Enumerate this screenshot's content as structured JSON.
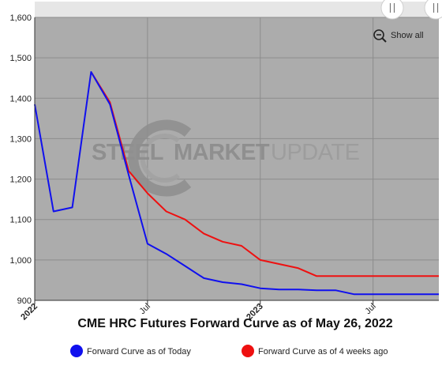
{
  "chart_data": {
    "type": "line",
    "title": "CME HRC Futures Forward Curve as of May 26, 2022",
    "x_ticks": [
      {
        "label": "2022",
        "bold": true,
        "month": 0
      },
      {
        "label": "Jul",
        "bold": false,
        "month": 6
      },
      {
        "label": "2023",
        "bold": true,
        "month": 12
      },
      {
        "label": "Jul",
        "bold": false,
        "month": 18
      }
    ],
    "xlim": [
      0,
      21.5
    ],
    "ylim": [
      900,
      1600
    ],
    "y_ticks": [
      900,
      1000,
      1100,
      1200,
      1300,
      1400,
      1500,
      1600
    ],
    "y_tick_labels": [
      "900",
      "1,000",
      "1,100",
      "1,200",
      "1,300",
      "1,400",
      "1,500",
      "1,600"
    ],
    "grid": true,
    "legend_position": "bottom",
    "series": [
      {
        "name": "Forward Curve as of Today",
        "color": "#1010ee",
        "x": [
          0,
          1,
          2,
          3,
          4,
          5,
          6,
          7,
          8,
          9,
          10,
          11,
          12,
          13,
          14,
          15,
          16,
          17,
          18,
          19,
          20,
          21.5
        ],
        "y": [
          1385,
          1120,
          1130,
          1465,
          1385,
          1210,
          1040,
          1015,
          985,
          955,
          945,
          940,
          930,
          927,
          927,
          925,
          925,
          915,
          915,
          915,
          915,
          915
        ]
      },
      {
        "name": "Forward Curve as of 4 weeks ago",
        "color": "#ee1010",
        "x": [
          3,
          4,
          5,
          6,
          7,
          8,
          9,
          10,
          11,
          12,
          13,
          14,
          15,
          16,
          17,
          18,
          19,
          20,
          21.5
        ],
        "y": [
          1465,
          1390,
          1220,
          1165,
          1120,
          1100,
          1065,
          1045,
          1035,
          1000,
          990,
          980,
          960,
          960,
          960,
          960,
          960,
          960,
          960
        ]
      }
    ]
  },
  "toolbar": {
    "show_all_label": "Show all"
  },
  "watermark": {
    "word1": "STEEL",
    "word2": "MARKET",
    "word3": "UPDATE"
  },
  "colors": {
    "plot_background": "#acacac",
    "grid": "#8c8c8c",
    "navigator_strip": "#e6e6e6"
  }
}
